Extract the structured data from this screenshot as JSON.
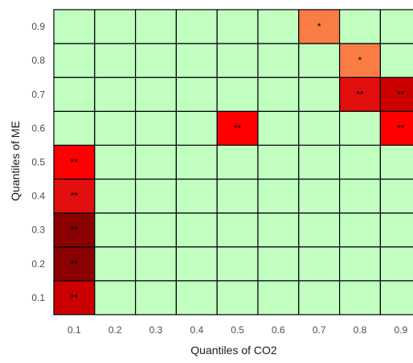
{
  "chart_data": {
    "type": "heatmap",
    "title": "",
    "xlabel": "Quantiles of CO2",
    "ylabel": "Quantiles of ME",
    "x_categories": [
      "0.1",
      "0.2",
      "0.3",
      "0.4",
      "0.5",
      "0.6",
      "0.7",
      "0.8",
      "0.9"
    ],
    "y_categories": [
      "0.1",
      "0.2",
      "0.3",
      "0.4",
      "0.5",
      "0.6",
      "0.7",
      "0.8",
      "0.9"
    ],
    "grid": true,
    "legend": "none",
    "colors": {
      "none": "#c1ffc1",
      "orange": "#f97c45",
      "red": "#ff0000",
      "red_medium": "#e30f0f",
      "red_strong": "#cc0000",
      "dark_red": "#8b0000",
      "grid_line": "#000000"
    },
    "cells": [
      {
        "x": "0.7",
        "y": "0.9",
        "level": "orange",
        "label": "*"
      },
      {
        "x": "0.8",
        "y": "0.8",
        "level": "orange",
        "label": "*"
      },
      {
        "x": "0.8",
        "y": "0.7",
        "level": "red_medium",
        "label": "**"
      },
      {
        "x": "0.9",
        "y": "0.7",
        "level": "red_strong",
        "label": "**"
      },
      {
        "x": "0.5",
        "y": "0.6",
        "level": "red",
        "label": "**"
      },
      {
        "x": "0.9",
        "y": "0.6",
        "level": "red",
        "label": "**"
      },
      {
        "x": "0.1",
        "y": "0.5",
        "level": "red",
        "label": "**"
      },
      {
        "x": "0.1",
        "y": "0.4",
        "level": "red_medium",
        "label": "**"
      },
      {
        "x": "0.1",
        "y": "0.3",
        "level": "dark_red",
        "label": "**"
      },
      {
        "x": "0.1",
        "y": "0.2",
        "level": "dark_red",
        "label": "**"
      },
      {
        "x": "0.1",
        "y": "0.1",
        "level": "red_strong",
        "label": "**"
      }
    ]
  }
}
